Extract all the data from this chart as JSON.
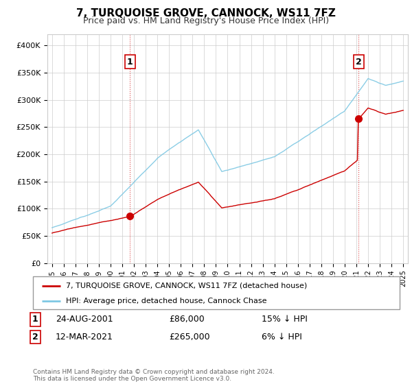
{
  "title": "7, TURQUOISE GROVE, CANNOCK, WS11 7FZ",
  "subtitle": "Price paid vs. HM Land Registry's House Price Index (HPI)",
  "ylabel_ticks": [
    "£0",
    "£50K",
    "£100K",
    "£150K",
    "£200K",
    "£250K",
    "£300K",
    "£350K",
    "£400K"
  ],
  "ytick_values": [
    0,
    50000,
    100000,
    150000,
    200000,
    250000,
    300000,
    350000,
    400000
  ],
  "ylim": [
    0,
    420000
  ],
  "sale1_date": 2001.65,
  "sale1_price": 86000,
  "sale1_label": "1",
  "sale2_date": 2021.19,
  "sale2_price": 265000,
  "sale2_label": "2",
  "legend_line1": "7, TURQUOISE GROVE, CANNOCK, WS11 7FZ (detached house)",
  "legend_line2": "HPI: Average price, detached house, Cannock Chase",
  "table_row1": [
    "1",
    "24-AUG-2001",
    "£86,000",
    "15% ↓ HPI"
  ],
  "table_row2": [
    "2",
    "12-MAR-2021",
    "£265,000",
    "6% ↓ HPI"
  ],
  "footnote": "Contains HM Land Registry data © Crown copyright and database right 2024.\nThis data is licensed under the Open Government Licence v3.0.",
  "line_color_hpi": "#7ec8e3",
  "line_color_price": "#cc0000",
  "dashed_color": "#cc0000",
  "marker_color": "#cc0000",
  "grid_color": "#cccccc",
  "background_color": "#ffffff"
}
